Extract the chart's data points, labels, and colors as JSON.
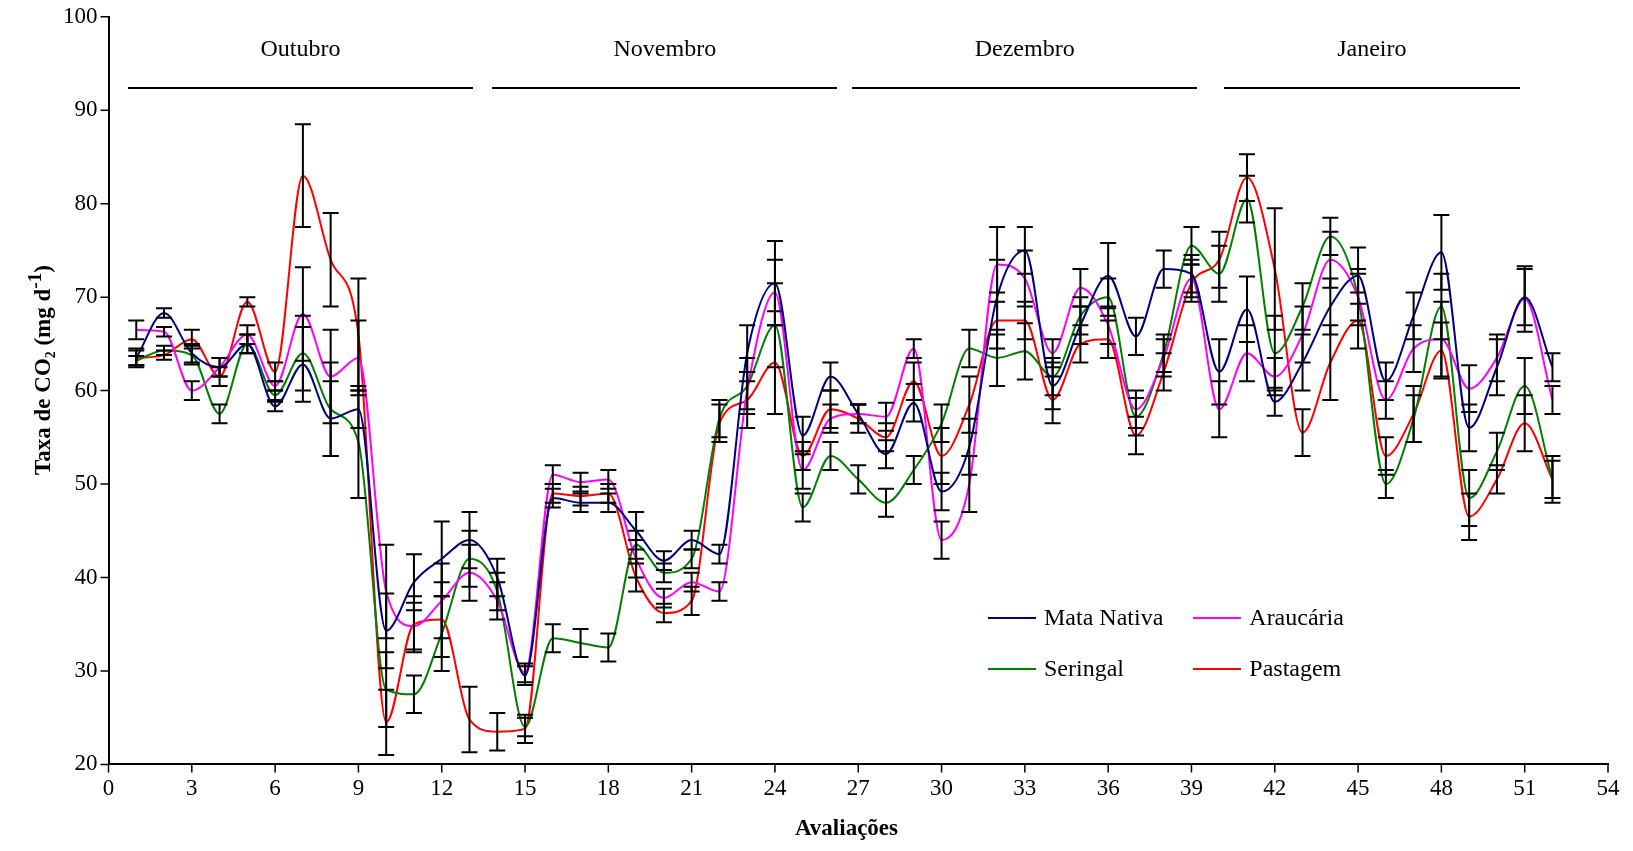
{
  "chart_data": {
    "type": "line",
    "xlabel": "Avaliações",
    "ylabel": "Taxa de CO₂ (mg d$^{-1}$)",
    "x": [
      1,
      2,
      3,
      4,
      5,
      6,
      7,
      8,
      9,
      10,
      11,
      12,
      13,
      14,
      15,
      16,
      17,
      18,
      19,
      20,
      21,
      22,
      23,
      24,
      25,
      26,
      27,
      28,
      29,
      30,
      31,
      32,
      33,
      34,
      35,
      36,
      37,
      38,
      39,
      40,
      41,
      42,
      43,
      44,
      45,
      46,
      47,
      48,
      49,
      50,
      51,
      52
    ],
    "xlim": [
      0,
      54
    ],
    "xticks": [
      0,
      3,
      6,
      9,
      12,
      15,
      18,
      21,
      24,
      27,
      30,
      33,
      36,
      39,
      42,
      45,
      48,
      51,
      54
    ],
    "ylim": [
      20,
      100
    ],
    "yticks": [
      20,
      30,
      40,
      50,
      60,
      70,
      80,
      90,
      100
    ],
    "grid": false,
    "legend": "bottom right",
    "marker": "none",
    "line_style": "solid",
    "annotations": [
      "Outubro",
      "Novembro",
      "Dezembro",
      "Janeiro"
    ],
    "series": [
      {
        "name": "Mata Nativa",
        "color": "#000080",
        "values": [
          63.5,
          68.3,
          64,
          62.5,
          65,
          58.3,
          62.8,
          57,
          58,
          34.3,
          39.5,
          42,
          44,
          40,
          29.5,
          48.5,
          48,
          48,
          45,
          41.8,
          44,
          42.5,
          64,
          71.5,
          55.2,
          61.5,
          57.5,
          53.2,
          58.7,
          49.2,
          54,
          70,
          75,
          60.5,
          67,
          72.3,
          65.8,
          73,
          72.5,
          62,
          68.7,
          58.8,
          63,
          69,
          72.3,
          61,
          68,
          74.8,
          56,
          62.5,
          70,
          62.5
        ],
        "errors": [
          1,
          0.5,
          1,
          1,
          1,
          0.5,
          4,
          4,
          2,
          4,
          3,
          4,
          3,
          2,
          1,
          1,
          1,
          1,
          2,
          1,
          1,
          1,
          3,
          4.5,
          2,
          1.5,
          1,
          1.5,
          2,
          2,
          3,
          4,
          2.5,
          2.5,
          2,
          3.5,
          2,
          2,
          2,
          3.5,
          3.5,
          1.5,
          3,
          3,
          3,
          2,
          2.5,
          4,
          2.5,
          3,
          3,
          1.5
        ]
      },
      {
        "name": "Araucária",
        "color": "#ff00ff",
        "values": [
          66.5,
          66.3,
          60,
          62.5,
          66,
          60.5,
          68.2,
          61.5,
          63.5,
          38.5,
          34.8,
          37.5,
          40.5,
          37.5,
          29.8,
          51,
          50.2,
          50.5,
          42,
          37.8,
          39.5,
          38.5,
          60,
          70.5,
          51.5,
          57,
          57.5,
          57.2,
          64.5,
          44,
          50,
          73.5,
          72,
          64,
          71,
          67,
          58,
          63.5,
          72,
          58,
          64,
          61.5,
          66,
          74,
          70,
          59,
          64.5,
          65.5,
          60.2,
          63.5,
          69.8,
          59
        ],
        "errors": [
          1,
          0.5,
          1,
          1,
          1,
          0.5,
          5,
          5,
          4,
          5,
          2.5,
          4,
          3,
          2,
          1,
          1,
          1,
          1,
          2,
          1,
          1,
          1,
          2,
          3.5,
          2,
          1.5,
          1,
          1.5,
          1,
          2,
          3,
          4,
          3,
          1.5,
          2,
          2,
          2,
          2,
          2,
          3,
          3,
          2,
          3,
          3,
          2.5,
          2,
          2.5,
          4,
          2.5,
          2.5,
          3.5,
          1.5
        ]
      },
      {
        "name": "Seringal",
        "color": "#008000",
        "values": [
          63.2,
          64.3,
          63.8,
          57.5,
          65,
          59.5,
          64,
          58,
          54.5,
          28,
          27.5,
          34,
          42,
          38.5,
          24,
          33.5,
          33,
          32.5,
          43.5,
          40.5,
          42,
          57,
          60.5,
          67,
          47.5,
          53,
          50.5,
          48,
          51.5,
          56.5,
          64.5,
          63.5,
          64.2,
          61.5,
          68,
          70,
          57.2,
          64,
          75.5,
          72.5,
          80.5,
          64,
          69,
          76.5,
          70,
          50,
          57,
          69,
          48.5,
          53.5,
          60.5,
          50.5
        ],
        "errors": [
          0.5,
          0.5,
          1,
          1,
          1,
          0.5,
          4,
          5,
          6,
          4,
          2,
          4,
          3,
          2,
          1,
          1.5,
          1.5,
          1.5,
          1.5,
          1,
          1,
          2,
          3,
          4.5,
          1.5,
          1.5,
          1.5,
          1.5,
          1.5,
          2,
          2,
          3,
          3,
          2,
          2,
          2,
          2,
          2,
          2,
          3,
          2.5,
          4,
          2.5,
          2,
          3,
          1.5,
          2.5,
          3.5,
          3,
          2,
          3,
          2.5
        ]
      },
      {
        "name": "Pastagem",
        "color": "#ff0000",
        "values": [
          63.5,
          63.8,
          65.5,
          61.5,
          69.5,
          62,
          83,
          74,
          66,
          24.5,
          35,
          35.5,
          24.8,
          23.5,
          23.8,
          49,
          48.7,
          49,
          40,
          36.2,
          37.5,
          56.5,
          59,
          63,
          53,
          58,
          57,
          55,
          61,
          53,
          58.5,
          67.5,
          67.5,
          59,
          65,
          65.5,
          55.2,
          62,
          71.5,
          74,
          82.8,
          73,
          55.5,
          63,
          67.5,
          53,
          57.5,
          64.3,
          46.5,
          50.5,
          56.5,
          50.5
        ],
        "errors": [
          0.8,
          0.5,
          1,
          1,
          0.5,
          1,
          5.5,
          5,
          6,
          3.5,
          3,
          4,
          3.5,
          2,
          1.5,
          1,
          1,
          1,
          1.5,
          1,
          1.5,
          2,
          3,
          5.5,
          1.5,
          2,
          1.5,
          1.5,
          2,
          3,
          3,
          3,
          2,
          2.5,
          2,
          2,
          2,
          2,
          2,
          3,
          2.5,
          6.5,
          2.5,
          4,
          3,
          2,
          3,
          3,
          2.5,
          1.5,
          3,
          2
        ]
      }
    ]
  }
}
